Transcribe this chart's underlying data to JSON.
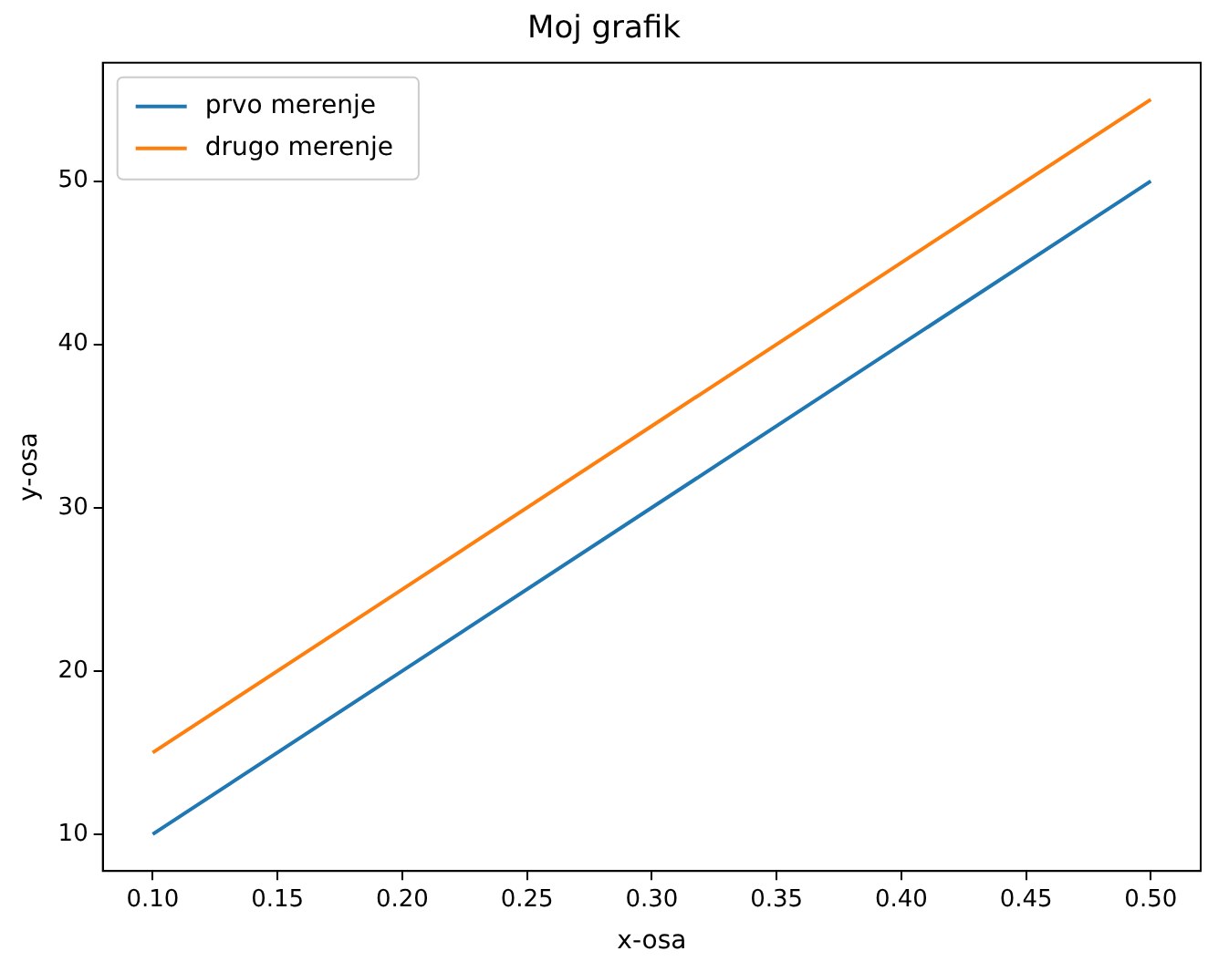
{
  "chart_data": {
    "type": "line",
    "title": "Moj grafik",
    "xlabel": "x-osa",
    "ylabel": "y-osa",
    "x": [
      0.1,
      0.2,
      0.3,
      0.4,
      0.5
    ],
    "series": [
      {
        "name": "prvo merenje",
        "color": "#1f77b4",
        "values": [
          10,
          20,
          30,
          40,
          50
        ]
      },
      {
        "name": "drugo merenje",
        "color": "#ff7f0e",
        "values": [
          15,
          25,
          35,
          45,
          55
        ]
      }
    ],
    "xlim": [
      0.08,
      0.52
    ],
    "xticks": [
      {
        "value": 0.1,
        "label": "0.10"
      },
      {
        "value": 0.15,
        "label": "0.15"
      },
      {
        "value": 0.2,
        "label": "0.20"
      },
      {
        "value": 0.25,
        "label": "0.25"
      },
      {
        "value": 0.3,
        "label": "0.30"
      },
      {
        "value": 0.35,
        "label": "0.35"
      },
      {
        "value": 0.4,
        "label": "0.40"
      },
      {
        "value": 0.45,
        "label": "0.45"
      },
      {
        "value": 0.5,
        "label": "0.50"
      }
    ],
    "ylim": [
      7.75,
      57.25
    ],
    "yticks": [
      10,
      20,
      30,
      40,
      50
    ],
    "grid": false,
    "legend": "top left",
    "marker": "none",
    "line_style": "solid"
  }
}
